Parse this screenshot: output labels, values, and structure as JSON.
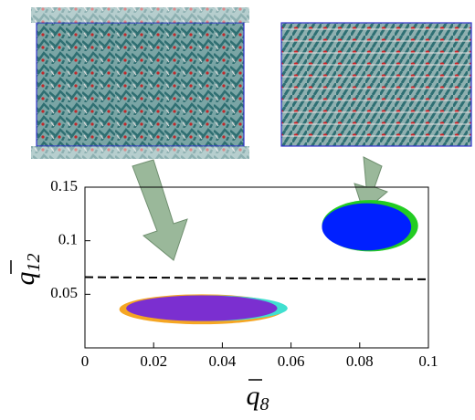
{
  "chart_data": {
    "type": "scatter",
    "xlabel": {
      "symbol": "q",
      "subscript": "8"
    },
    "ylabel": {
      "symbol": "q",
      "subscript": "12"
    },
    "xlim": [
      0,
      0.1
    ],
    "ylim": [
      0,
      0.15
    ],
    "xticks": [
      0,
      0.02,
      0.04,
      0.06,
      0.08,
      0.1
    ],
    "yticks": [
      0.05,
      0.1,
      0.15
    ],
    "series": [
      {
        "color": "#f5a623",
        "x": [
          0.034
        ],
        "values": [
          0.036
        ],
        "xerr": [
          0.024
        ],
        "yerr": [
          0.014
        ]
      },
      {
        "color": "#40e0d0",
        "x": [
          0.036
        ],
        "values": [
          0.037
        ],
        "xerr": [
          0.023
        ],
        "yerr": [
          0.012
        ]
      },
      {
        "color": "#7b2fd0",
        "x": [
          0.034
        ],
        "values": [
          0.037
        ],
        "xerr": [
          0.022
        ],
        "yerr": [
          0.012
        ]
      },
      {
        "color": "#22cc22",
        "x": [
          0.083
        ],
        "values": [
          0.114
        ],
        "xerr": [
          0.014
        ],
        "yerr": [
          0.024
        ]
      },
      {
        "color": "#0020ff",
        "x": [
          0.082
        ],
        "values": [
          0.113
        ],
        "xerr": [
          0.013
        ],
        "yerr": [
          0.022
        ]
      }
    ],
    "threshold": {
      "color": "#000000",
      "x": [
        0,
        0.1
      ],
      "values": [
        0.066,
        0.064
      ]
    }
  }
}
